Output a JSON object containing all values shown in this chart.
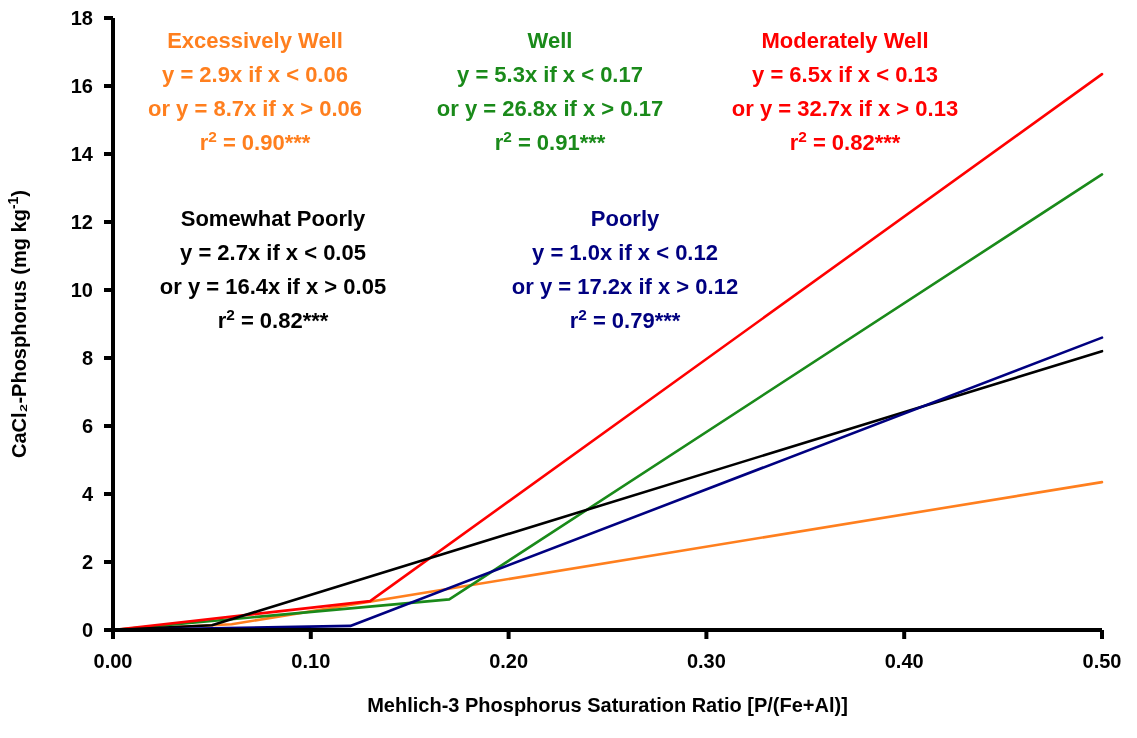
{
  "chart_data": {
    "type": "line",
    "xlabel": "Mehlich-3 Phosphorus Saturation Ratio [P/(Fe+Al)]",
    "ylabel": "CaCl₂-Phosphorus (mg kg$^{-1}$)",
    "xlim": [
      0,
      0.5
    ],
    "ylim": [
      0,
      18
    ],
    "xticks": [
      {
        "value": 0,
        "label": "0.00"
      },
      {
        "value": 0.1,
        "label": "0.10"
      },
      {
        "value": 0.2,
        "label": "0.20"
      },
      {
        "value": 0.3,
        "label": "0.30"
      },
      {
        "value": 0.4,
        "label": "0.40"
      },
      {
        "value": 0.5,
        "label": "0.50"
      }
    ],
    "yticks": [
      0,
      2,
      4,
      6,
      8,
      10,
      12,
      14,
      16,
      18
    ],
    "grid": false,
    "marker": "none",
    "line_style": "solid",
    "series": [
      {
        "name": "Excessively Well",
        "color": "#ff7f1e",
        "x": [
          0,
          0.06,
          0.5
        ],
        "values": [
          0,
          0.17,
          4.35
        ]
      },
      {
        "name": "Well",
        "color": "#1a8a1a",
        "x": [
          0,
          0.17,
          0.5
        ],
        "values": [
          0,
          0.9,
          13.4
        ]
      },
      {
        "name": "Moderately Well",
        "color": "#ff0000",
        "x": [
          0,
          0.13,
          0.5
        ],
        "values": [
          0,
          0.85,
          16.35
        ]
      },
      {
        "name": "Somewhat Poorly",
        "color": "#000000",
        "x": [
          0,
          0.05,
          0.5
        ],
        "values": [
          0,
          0.14,
          8.2
        ]
      },
      {
        "name": "Poorly",
        "color": "#000080",
        "x": [
          0,
          0.12,
          0.5
        ],
        "values": [
          0,
          0.12,
          8.6
        ]
      }
    ],
    "annotations": [
      "y = 2.9x if x < 0.06\nor y = 8.7x if x > 0.06\nr$^{2}$ = 0.90***",
      "y = 5.3x if x < 0.17\nor y = 26.8x if x > 0.17\nr$^{2}$ = 0.91***",
      "y = 6.5x if x < 0.13\nor y = 32.7x if x > 0.13\nr$^{2}$ = 0.82***",
      "y = 2.7x if x < 0.05\nor y = 16.4x if x > 0.05\nr$^{2}$ = 0.82***",
      "y = 1.0x if x < 0.12\nor y = 17.2x if x > 0.12\nr$^{2}$ = 0.79***"
    ]
  }
}
